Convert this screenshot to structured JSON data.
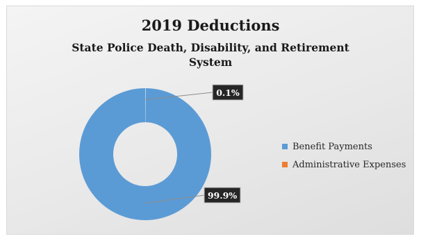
{
  "chart_data": {
    "type": "pie",
    "title": "2019 Deductions",
    "subtitle": "State Police Death, Disability, and Retirement System",
    "categories": [
      "Benefit Payments",
      "Administrative Expenses"
    ],
    "values": [
      99.9,
      0.1
    ],
    "data_labels": [
      "99.9%",
      "0.1%"
    ],
    "colors": [
      "#5b9bd5",
      "#ed7d31"
    ],
    "legend_position": "right",
    "donut": true
  },
  "colors": {
    "label_background": "#262626",
    "label_text": "#ffffff",
    "leader_line": "#8c8c8c"
  }
}
